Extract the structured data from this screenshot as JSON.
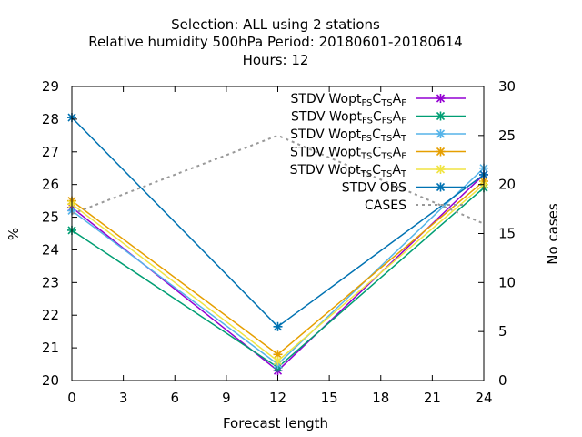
{
  "chart_data": {
    "type": "line",
    "title_lines": [
      "Selection: ALL using     2 stations",
      "Relative humidity 500hPa    Period: 20180601-20180614",
      "Hours:  12"
    ],
    "xlabel": "Forecast length",
    "ylabel": "%",
    "y2label": "No cases",
    "x": [
      0,
      12,
      24
    ],
    "xticks": [
      "0",
      "3",
      "6",
      "9",
      "12",
      "15",
      "18",
      "21",
      "24"
    ],
    "xlim": [
      0,
      24
    ],
    "ylim": [
      20,
      29
    ],
    "yticks": [
      "20",
      "21",
      "22",
      "23",
      "24",
      "25",
      "26",
      "27",
      "28",
      "29"
    ],
    "y2lim": [
      0,
      30
    ],
    "y2ticks": [
      "0",
      "5",
      "10",
      "15",
      "20",
      "25",
      "30"
    ],
    "grid": false,
    "legend_position": "top-right",
    "series": [
      {
        "name": "STDV Wopt",
        "name_parts": [
          [
            "STDV Wopt",
            ""
          ],
          [
            "FS",
            "sub"
          ],
          [
            "C",
            ""
          ],
          [
            "TS",
            "sub"
          ],
          [
            "A",
            ""
          ],
          [
            "F",
            "sub"
          ]
        ],
        "color": "#9400d3",
        "marker": "cross",
        "values": [
          25.3,
          20.3,
          26.3
        ]
      },
      {
        "name": "STDV Wopt",
        "name_parts": [
          [
            "STDV Wopt",
            ""
          ],
          [
            "FS",
            "sub"
          ],
          [
            "C",
            ""
          ],
          [
            "FS",
            "sub"
          ],
          [
            "A",
            ""
          ],
          [
            "F",
            "sub"
          ]
        ],
        "color": "#009e73",
        "marker": "cross",
        "values": [
          24.6,
          20.4,
          25.9
        ]
      },
      {
        "name": "STDV Wopt",
        "name_parts": [
          [
            "STDV Wopt",
            ""
          ],
          [
            "FS",
            "sub"
          ],
          [
            "C",
            ""
          ],
          [
            "TS",
            "sub"
          ],
          [
            "A",
            ""
          ],
          [
            "T",
            "sub"
          ]
        ],
        "color": "#56b4e9",
        "marker": "cross",
        "values": [
          25.2,
          20.5,
          26.5
        ]
      },
      {
        "name": "STDV Wopt",
        "name_parts": [
          [
            "STDV Wopt",
            ""
          ],
          [
            "TS",
            "sub"
          ],
          [
            "C",
            ""
          ],
          [
            "TS",
            "sub"
          ],
          [
            "A",
            ""
          ],
          [
            "F",
            "sub"
          ]
        ],
        "color": "#e69f00",
        "marker": "cross",
        "values": [
          25.5,
          20.8,
          26.1
        ]
      },
      {
        "name": "STDV Wopt",
        "name_parts": [
          [
            "STDV Wopt",
            ""
          ],
          [
            "TS",
            "sub"
          ],
          [
            "C",
            ""
          ],
          [
            "TS",
            "sub"
          ],
          [
            "A",
            ""
          ],
          [
            "T",
            "sub"
          ]
        ],
        "color": "#f0e442",
        "marker": "cross",
        "values": [
          25.4,
          20.6,
          26.0
        ]
      },
      {
        "name": "STDV OBS",
        "name_parts": [
          [
            "STDV OBS",
            ""
          ]
        ],
        "color": "#0072b2",
        "marker": "cross",
        "values": [
          28.05,
          21.65,
          26.3
        ]
      },
      {
        "name": "CASES",
        "name_parts": [
          [
            "CASES",
            ""
          ]
        ],
        "color": "#999999",
        "marker": "none",
        "dashed": true,
        "axis": "y2",
        "values": [
          17,
          25,
          16
        ]
      }
    ]
  }
}
